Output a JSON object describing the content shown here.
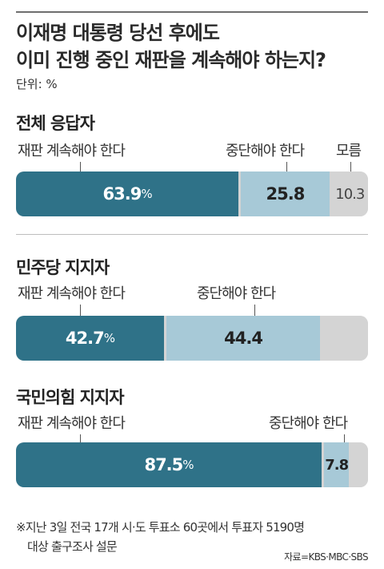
{
  "title_line1": "이재명 대통령 당선 후에도",
  "title_line2": "이미 진행 중인 재판을 계속해야 하는지?",
  "unit": "단위: %",
  "footnote_line1": "※지난 3일 전국 17개 시·도 투표소 60곳에서 투표자 5190명",
  "footnote_line2": "대상 출구조사 설문",
  "source": "자료=KBS·MBC·SBS",
  "colors": {
    "continue": "#2f7288",
    "stop": "#a7c9d7",
    "unknown": "#d4d4d4",
    "continue_text": "#ffffff",
    "stop_text": "#222222",
    "unknown_text": "#444444"
  },
  "chart_data": {
    "type": "bar",
    "orientation": "horizontal",
    "stacked": true,
    "normalized": true,
    "unit": "%",
    "categories": [
      "전체 응답자",
      "민주당 지지자",
      "국민의힘 지지자"
    ],
    "series": [
      {
        "name": "재판 계속해야 한다",
        "values": [
          63.9,
          42.7,
          87.5
        ]
      },
      {
        "name": "중단해야 한다",
        "values": [
          25.8,
          44.4,
          7.8
        ]
      },
      {
        "name": "모름",
        "values": [
          10.3,
          null,
          null
        ]
      }
    ],
    "value_labels": [
      [
        "63.9",
        "25.8",
        "10.3"
      ],
      [
        "42.7",
        "44.4",
        ""
      ],
      [
        "87.5",
        "7.8",
        ""
      ]
    ],
    "pct_suffix": "%",
    "grid": false
  }
}
